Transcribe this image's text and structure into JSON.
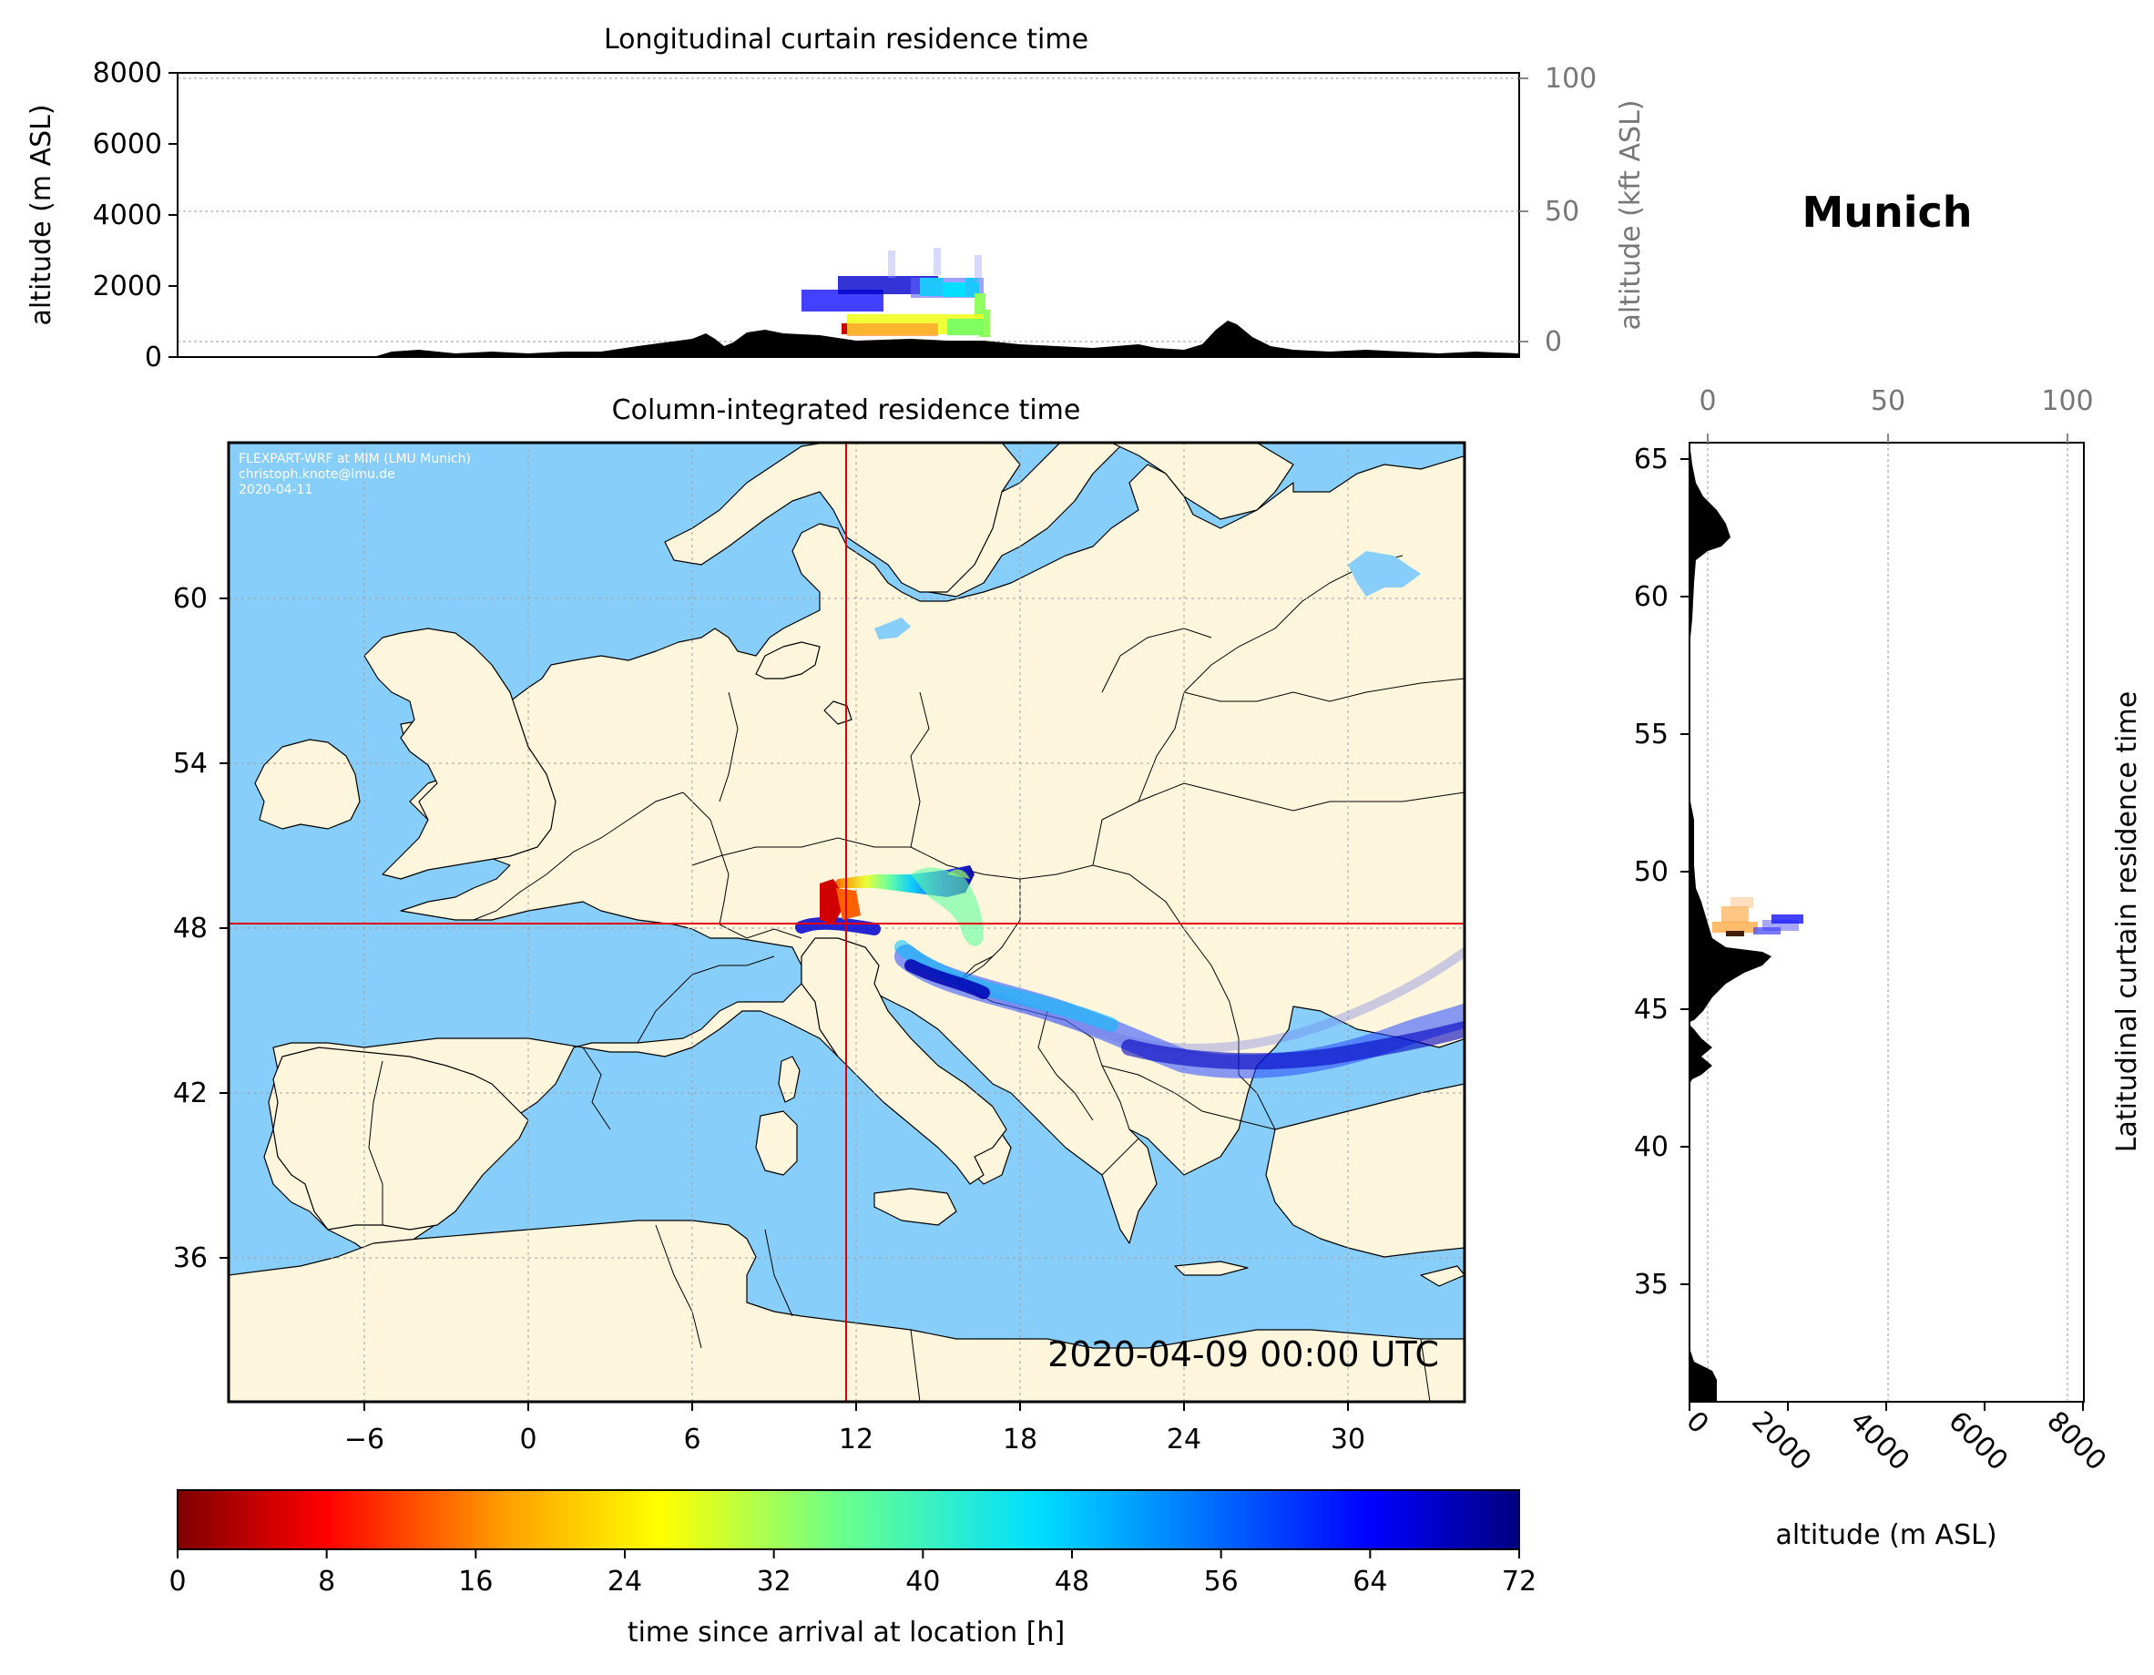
{
  "location_title": "Munich",
  "top_panel": {
    "title": "Longitudinal curtain residence time",
    "ylabel_left": "altitude (m ASL)",
    "ylabel_right": "altitude (kft ASL)",
    "yticks_left": [
      "0",
      "2000",
      "4000",
      "6000",
      "8000"
    ],
    "yticks_right": [
      "0",
      "50",
      "100"
    ]
  },
  "map_panel": {
    "title": "Column-integrated residence time",
    "credit_lines": [
      "FLEXPART-WRF at MIM (LMU Munich)",
      "christoph.knote@lmu.de",
      "2020-04-11"
    ],
    "timestamp": "2020-04-09 00:00 UTC",
    "xticks": [
      "−6",
      "0",
      "6",
      "12",
      "18",
      "24",
      "30"
    ],
    "yticks": [
      "36",
      "42",
      "48",
      "54",
      "60"
    ],
    "colors": {
      "ocean": "#87cefa",
      "land": "#fdf5dc",
      "crosshair": "#e00000"
    }
  },
  "right_panel": {
    "ylabel": "Latitudinal curtain residence time",
    "xlabel": "altitude (m ASL)",
    "xticks_top": [
      "0",
      "50",
      "100"
    ],
    "xticks_bottom": [
      "0",
      "2000",
      "4000",
      "6000",
      "8000"
    ],
    "yticks": [
      "35",
      "40",
      "45",
      "50",
      "55",
      "60",
      "65"
    ]
  },
  "colorbar": {
    "label": "time since arrival at location [h]",
    "ticks": [
      "0",
      "8",
      "16",
      "24",
      "32",
      "40",
      "48",
      "56",
      "64",
      "72"
    ],
    "range_hours": [
      0,
      72
    ],
    "colormap": "jet"
  }
}
